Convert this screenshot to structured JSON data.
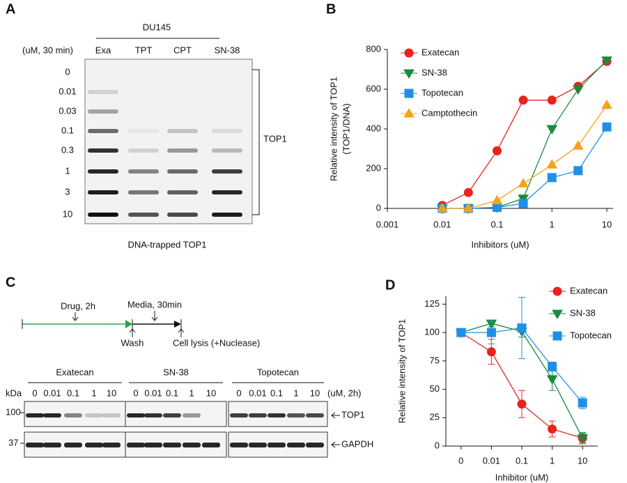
{
  "panel_labels": [
    "A",
    "B",
    "C",
    "D"
  ],
  "panel_a": {
    "cell_line": "DU145",
    "unit": "(uM, 30 min)",
    "lanes": [
      "Exa",
      "TPT",
      "CPT",
      "SN-38"
    ],
    "concentrations": [
      "0",
      "0.01",
      "0.03",
      "0.1",
      "0.3",
      "1",
      "3",
      "10"
    ],
    "band_label": "TOP1",
    "caption": "DNA-trapped TOP1"
  },
  "panel_c": {
    "drug": "Drug, 2h",
    "media": "Media, 30min",
    "wash": "Wash",
    "lysis": "Cell lysis (+Nuclease)",
    "groups": [
      "Exatecan",
      "SN-38",
      "Topotecan"
    ],
    "doses": [
      "0",
      "0.01",
      "0.1",
      "1",
      "10"
    ],
    "dose_unit": "(uM, 2h)",
    "kda": "kDa",
    "markers": [
      "100",
      "37"
    ],
    "bands": [
      "TOP1",
      "GAPDH"
    ]
  },
  "chart_data": [
    {
      "type": "line",
      "xscale": "log",
      "xlabel": "Inhibitors (uM)",
      "ylabel": [
        "Relative intensity of TOP1",
        "(TOP1/DNA)"
      ],
      "x": [
        0.01,
        0.03,
        0.1,
        0.3,
        1,
        3,
        10
      ],
      "xlim": [
        0.001,
        13
      ],
      "xticks": [
        0.001,
        0.01,
        0.1,
        1,
        10
      ],
      "ylim": [
        0,
        800
      ],
      "yticks": [
        0,
        200,
        400,
        600,
        800
      ],
      "legend": "upper left",
      "series": [
        {
          "name": "Exatecan",
          "color": "#e8231d",
          "marker": "circle",
          "values": [
            15,
            80,
            290,
            545,
            545,
            615,
            740
          ]
        },
        {
          "name": "SN-38",
          "color": "#1a8a3c",
          "marker": "triangle-down",
          "values": [
            0,
            0,
            5,
            50,
            400,
            600,
            745
          ]
        },
        {
          "name": "Topotecan",
          "color": "#1e90e8",
          "marker": "square",
          "values": [
            0,
            0,
            5,
            25,
            155,
            190,
            410
          ]
        },
        {
          "name": "Camptothecin",
          "color": "#f7a21b",
          "marker": "triangle-up",
          "values": [
            0,
            0,
            40,
            125,
            220,
            315,
            520
          ]
        }
      ]
    },
    {
      "type": "line",
      "xlabel": "Inhibitor (uM)",
      "ylabel": [
        "Relative intensity of TOP1"
      ],
      "categories": [
        "0",
        "0.01",
        "0.1",
        "1",
        "10"
      ],
      "ylim": [
        0,
        132
      ],
      "yticks": [
        0,
        25,
        50,
        75,
        100,
        125
      ],
      "legend": "upper right",
      "series": [
        {
          "name": "Exatecan",
          "color": "#e8231d",
          "marker": "circle",
          "values": [
            100,
            83,
            37,
            15,
            7
          ],
          "errors": [
            0,
            11,
            12,
            7,
            4
          ]
        },
        {
          "name": "SN-38",
          "color": "#1a8a3c",
          "marker": "triangle-down",
          "values": [
            100,
            108,
            101,
            59,
            7
          ],
          "errors": [
            0,
            3,
            5,
            10,
            5
          ]
        },
        {
          "name": "Topotecan",
          "color": "#1e90e8",
          "marker": "square",
          "values": [
            100,
            100,
            104,
            70,
            38
          ],
          "errors": [
            0,
            10,
            27,
            4,
            5
          ]
        }
      ]
    }
  ]
}
